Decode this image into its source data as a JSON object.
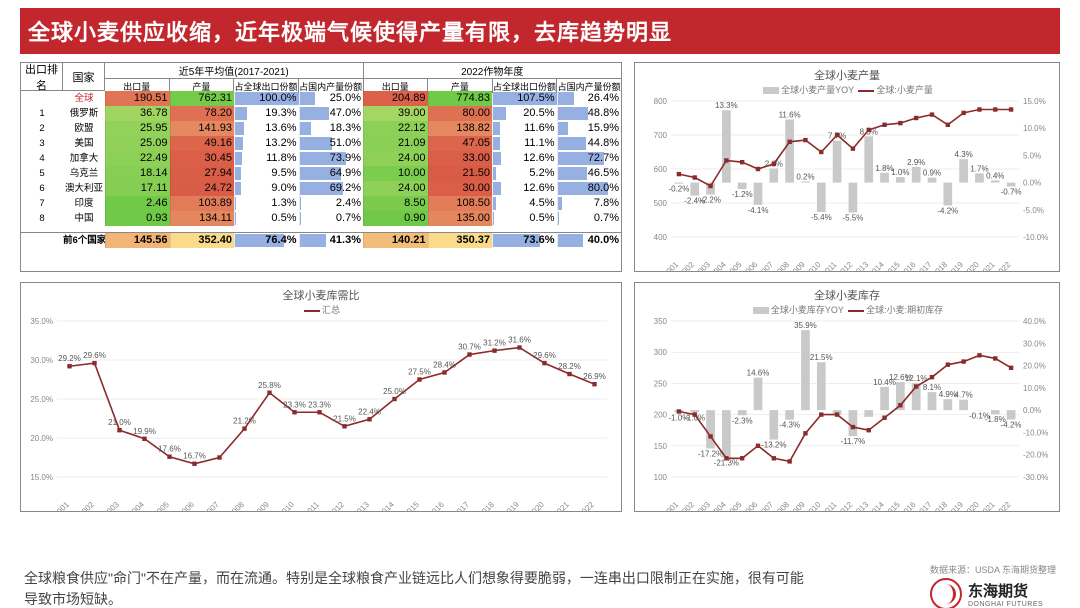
{
  "title": "全球小麦供应收缩，近年极端气候使得产量有限，去库趋势明显",
  "table": {
    "rankHeader": "出口排名",
    "countryHeader": "国家",
    "group1": "近5年平均值(2017-2021)",
    "group2": "2022作物年度",
    "subHeaders": [
      "出口量",
      "产量",
      "占全球出口份额",
      "占国内产量份额"
    ],
    "globalLabel": "全球",
    "sumLabel": "前6个国家合计",
    "globalRow": {
      "g1": [
        "190.51",
        "762.31",
        "100.0%",
        "25.0%"
      ],
      "g2": [
        "204.89",
        "774.83",
        "107.5%",
        "26.4%"
      ]
    },
    "rows": [
      {
        "rank": "1",
        "country": "俄罗斯",
        "g1": [
          "36.78",
          "78.20",
          "19.3%",
          "47.0%"
        ],
        "g2": [
          "39.00",
          "80.00",
          "20.5%",
          "48.8%"
        ]
      },
      {
        "rank": "2",
        "country": "欧盟",
        "g1": [
          "25.95",
          "141.93",
          "13.6%",
          "18.3%"
        ],
        "g2": [
          "22.12",
          "138.82",
          "11.6%",
          "15.9%"
        ]
      },
      {
        "rank": "3",
        "country": "美国",
        "g1": [
          "25.09",
          "49.16",
          "13.2%",
          "51.0%"
        ],
        "g2": [
          "21.09",
          "47.05",
          "11.1%",
          "44.8%"
        ]
      },
      {
        "rank": "4",
        "country": "加拿大",
        "g1": [
          "22.49",
          "30.45",
          "11.8%",
          "73.9%"
        ],
        "g2": [
          "24.00",
          "33.00",
          "12.6%",
          "72.7%"
        ]
      },
      {
        "rank": "5",
        "country": "乌克兰",
        "g1": [
          "18.14",
          "27.94",
          "9.5%",
          "64.9%"
        ],
        "g2": [
          "10.00",
          "21.50",
          "5.2%",
          "46.5%"
        ]
      },
      {
        "rank": "6",
        "country": "澳大利亚",
        "g1": [
          "17.11",
          "24.72",
          "9.0%",
          "69.2%"
        ],
        "g2": [
          "24.00",
          "30.00",
          "12.6%",
          "80.0%"
        ]
      },
      {
        "rank": "7",
        "country": "印度",
        "g1": [
          "2.46",
          "103.89",
          "1.3%",
          "2.4%"
        ],
        "g2": [
          "8.50",
          "108.50",
          "4.5%",
          "7.8%"
        ]
      },
      {
        "rank": "8",
        "country": "中国",
        "g1": [
          "0.93",
          "134.11",
          "0.5%",
          "0.7%"
        ],
        "g2": [
          "0.90",
          "135.00",
          "0.5%",
          "0.7%"
        ]
      }
    ],
    "sumRow": {
      "g1": [
        "145.56",
        "352.40",
        "76.4%",
        "41.3%"
      ],
      "g2": [
        "140.21",
        "350.37",
        "73.6%",
        "40.0%"
      ]
    },
    "colColors": {
      "exportScale": [
        "#d94b3a",
        "#ffeec2",
        "#9ad47a"
      ],
      "prodScale": [
        "#6fbd58",
        "#ffeec2",
        "#e05a3a"
      ],
      "bar": "#6b8fd6"
    }
  },
  "chartProd": {
    "title": "全球小麦产量",
    "legendBar": "全球小麦产量YOY",
    "legendLine": "全球:小麦产量",
    "barColor": "#c9c9c9",
    "lineColor": "#8b2b2b",
    "years": [
      "2001",
      "2002",
      "2003",
      "2004",
      "2005",
      "2006",
      "2007",
      "2008",
      "2009",
      "2010",
      "2011",
      "2012",
      "2013",
      "2014",
      "2015",
      "2016",
      "2017",
      "2018",
      "2019",
      "2020",
      "2021",
      "2022"
    ],
    "yLeft": {
      "min": 400,
      "max": 800,
      "step": 100
    },
    "yRight": {
      "min": -10,
      "max": 15,
      "step": 5,
      "fmt": "%"
    },
    "line": [
      585,
      575,
      550,
      625,
      620,
      600,
      615,
      680,
      685,
      650,
      700,
      660,
      715,
      730,
      735,
      750,
      760,
      730,
      765,
      775,
      775,
      775
    ],
    "bars": [
      -0.2,
      -2.4,
      -2.2,
      13.3,
      -1.2,
      -4.1,
      2.6,
      11.6,
      0.2,
      -5.4,
      7.7,
      -5.5,
      8.5,
      1.8,
      1.0,
      2.9,
      0.9,
      -4.2,
      4.3,
      1.7,
      0.4,
      -0.7
    ],
    "barLabels": [
      "-0.2%",
      "-2.4%",
      "-2.2%",
      "13.3%",
      "-1.2%",
      "-4.1%",
      "2.6%",
      "11.6%",
      "0.2%",
      "-5.4%",
      "7.7%",
      "-5.5%",
      "8.5%",
      "1.8%",
      "1.0%",
      "2.9%",
      "0.9%",
      "-4.2%",
      "4.3%",
      "1.7%",
      "0.4%",
      "-0.7%"
    ]
  },
  "chartRatio": {
    "title": "全球小麦库需比",
    "legend": "汇总",
    "lineColor": "#8b2b2b",
    "years": [
      "2001",
      "2002",
      "2003",
      "2004",
      "2005",
      "2006",
      "2007",
      "2008",
      "2009",
      "2010",
      "2011",
      "2012",
      "2013",
      "2014",
      "2015",
      "2016",
      "2017",
      "2018",
      "2019",
      "2020",
      "2021",
      "2022"
    ],
    "y": {
      "min": 15,
      "max": 35,
      "step": 5,
      "fmt": "%"
    },
    "vals": [
      29.2,
      29.6,
      21.0,
      19.9,
      17.6,
      16.7,
      17.5,
      21.2,
      25.8,
      23.3,
      23.3,
      21.5,
      22.4,
      25.0,
      27.5,
      28.4,
      30.7,
      31.2,
      31.6,
      29.6,
      28.2,
      26.9
    ],
    "labels": [
      "29.2%",
      "29.6%",
      "21.0%",
      "19.9%",
      "17.6%",
      "16.7%",
      "",
      "21.2%",
      "25.8%",
      "23.3%",
      "23.3%",
      "21.5%",
      "22.4%",
      "25.0%",
      "27.5%",
      "28.4%",
      "30.7%",
      "31.2%",
      "31.6%",
      "29.6%",
      "28.2%",
      "26.9%"
    ]
  },
  "chartInv": {
    "title": "全球小麦库存",
    "legendBar": "全球小麦库存YOY",
    "legendLine": "全球:小麦:期初库存",
    "barColor": "#c9c9c9",
    "lineColor": "#8b2b2b",
    "years": [
      "2001",
      "2002",
      "2003",
      "2004",
      "2005",
      "2006",
      "2007",
      "2008",
      "2009",
      "2010",
      "2011",
      "2012",
      "2013",
      "2014",
      "2015",
      "2016",
      "2017",
      "2018",
      "2019",
      "2020",
      "2021",
      "2022"
    ],
    "yLeft": {
      "min": 100,
      "max": 350,
      "step": 50
    },
    "yRight": {
      "min": -30,
      "max": 40,
      "step": 10,
      "fmt": "%"
    },
    "line": [
      205,
      200,
      165,
      130,
      130,
      150,
      130,
      125,
      170,
      200,
      200,
      180,
      175,
      195,
      215,
      245,
      260,
      280,
      285,
      295,
      290,
      275
    ],
    "bars": [
      -1.0,
      -1.0,
      -17.2,
      -21.3,
      -2.3,
      14.6,
      -13.2,
      -4.3,
      35.9,
      21.5,
      -2.0,
      -11.7,
      -3.0,
      10.4,
      12.6,
      12.1,
      8.1,
      4.9,
      4.7,
      -0.1,
      -1.8,
      -4.2
    ],
    "barLabels": [
      "-1.0%",
      "-1.0%",
      "-17.2%",
      "-21.3%",
      "-2.3%",
      "14.6%",
      "-13.2%",
      "-4.3%",
      "35.9%",
      "21.5%",
      "",
      "-11.7%",
      "",
      "10.4%",
      "12.6%",
      "12.1%",
      "8.1%",
      "4.9%",
      "4.7%",
      "-0.1%",
      "-1.8%",
      "-4.2%"
    ]
  },
  "footer": {
    "text": "全球粮食供应\"命门\"不在产量，而在流通。特别是全球粮食产业链远比人们想象得要脆弱，一连串出口限制正在实施，很有可能导致市场短缺。",
    "source": "数据来源：USDA 东海期货整理",
    "brandCn": "东海期货",
    "brandEn": "DONGHAI FUTURES"
  }
}
